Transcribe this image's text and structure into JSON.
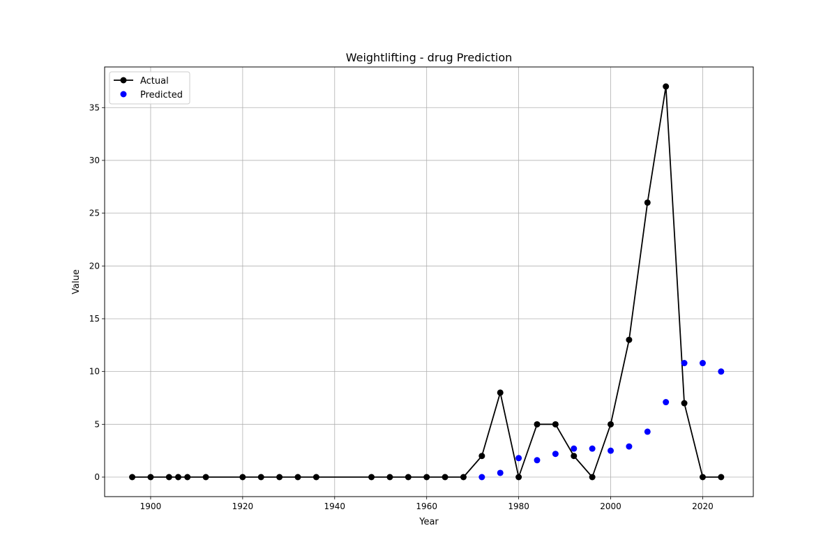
{
  "chart_data": {
    "type": "line",
    "title": "Weightlifting - drug Prediction",
    "xlabel": "Year",
    "ylabel": "Value",
    "xlim": [
      1890,
      2031
    ],
    "ylim": [
      -1.85,
      38.85
    ],
    "xticks": [
      1900,
      1920,
      1940,
      1960,
      1980,
      2000,
      2020
    ],
    "yticks": [
      0,
      5,
      10,
      15,
      20,
      25,
      30,
      35
    ],
    "grid": true,
    "legend_position": "top-left",
    "series": [
      {
        "name": "Actual",
        "kind": "line-with-markers",
        "color": "#000000",
        "x": [
          1896,
          1900,
          1904,
          1906,
          1908,
          1912,
          1920,
          1924,
          1928,
          1932,
          1936,
          1948,
          1952,
          1956,
          1960,
          1964,
          1968,
          1972,
          1976,
          1980,
          1984,
          1988,
          1992,
          1996,
          2000,
          2004,
          2008,
          2012,
          2016,
          2020,
          2024
        ],
        "y": [
          0,
          0,
          0,
          0,
          0,
          0,
          0,
          0,
          0,
          0,
          0,
          0,
          0,
          0,
          0,
          0,
          0,
          2,
          8,
          0,
          5,
          5,
          2,
          0,
          5,
          13,
          26,
          37,
          7,
          0,
          0
        ]
      },
      {
        "name": "Predicted",
        "kind": "scatter",
        "color": "#0000ff",
        "x": [
          1972,
          1976,
          1980,
          1984,
          1988,
          1992,
          1996,
          2000,
          2004,
          2008,
          2012,
          2016,
          2020,
          2024
        ],
        "y": [
          0.0,
          0.4,
          1.8,
          1.6,
          2.2,
          2.7,
          2.7,
          2.5,
          2.9,
          4.3,
          7.1,
          10.8,
          10.8,
          10.0
        ]
      }
    ]
  }
}
